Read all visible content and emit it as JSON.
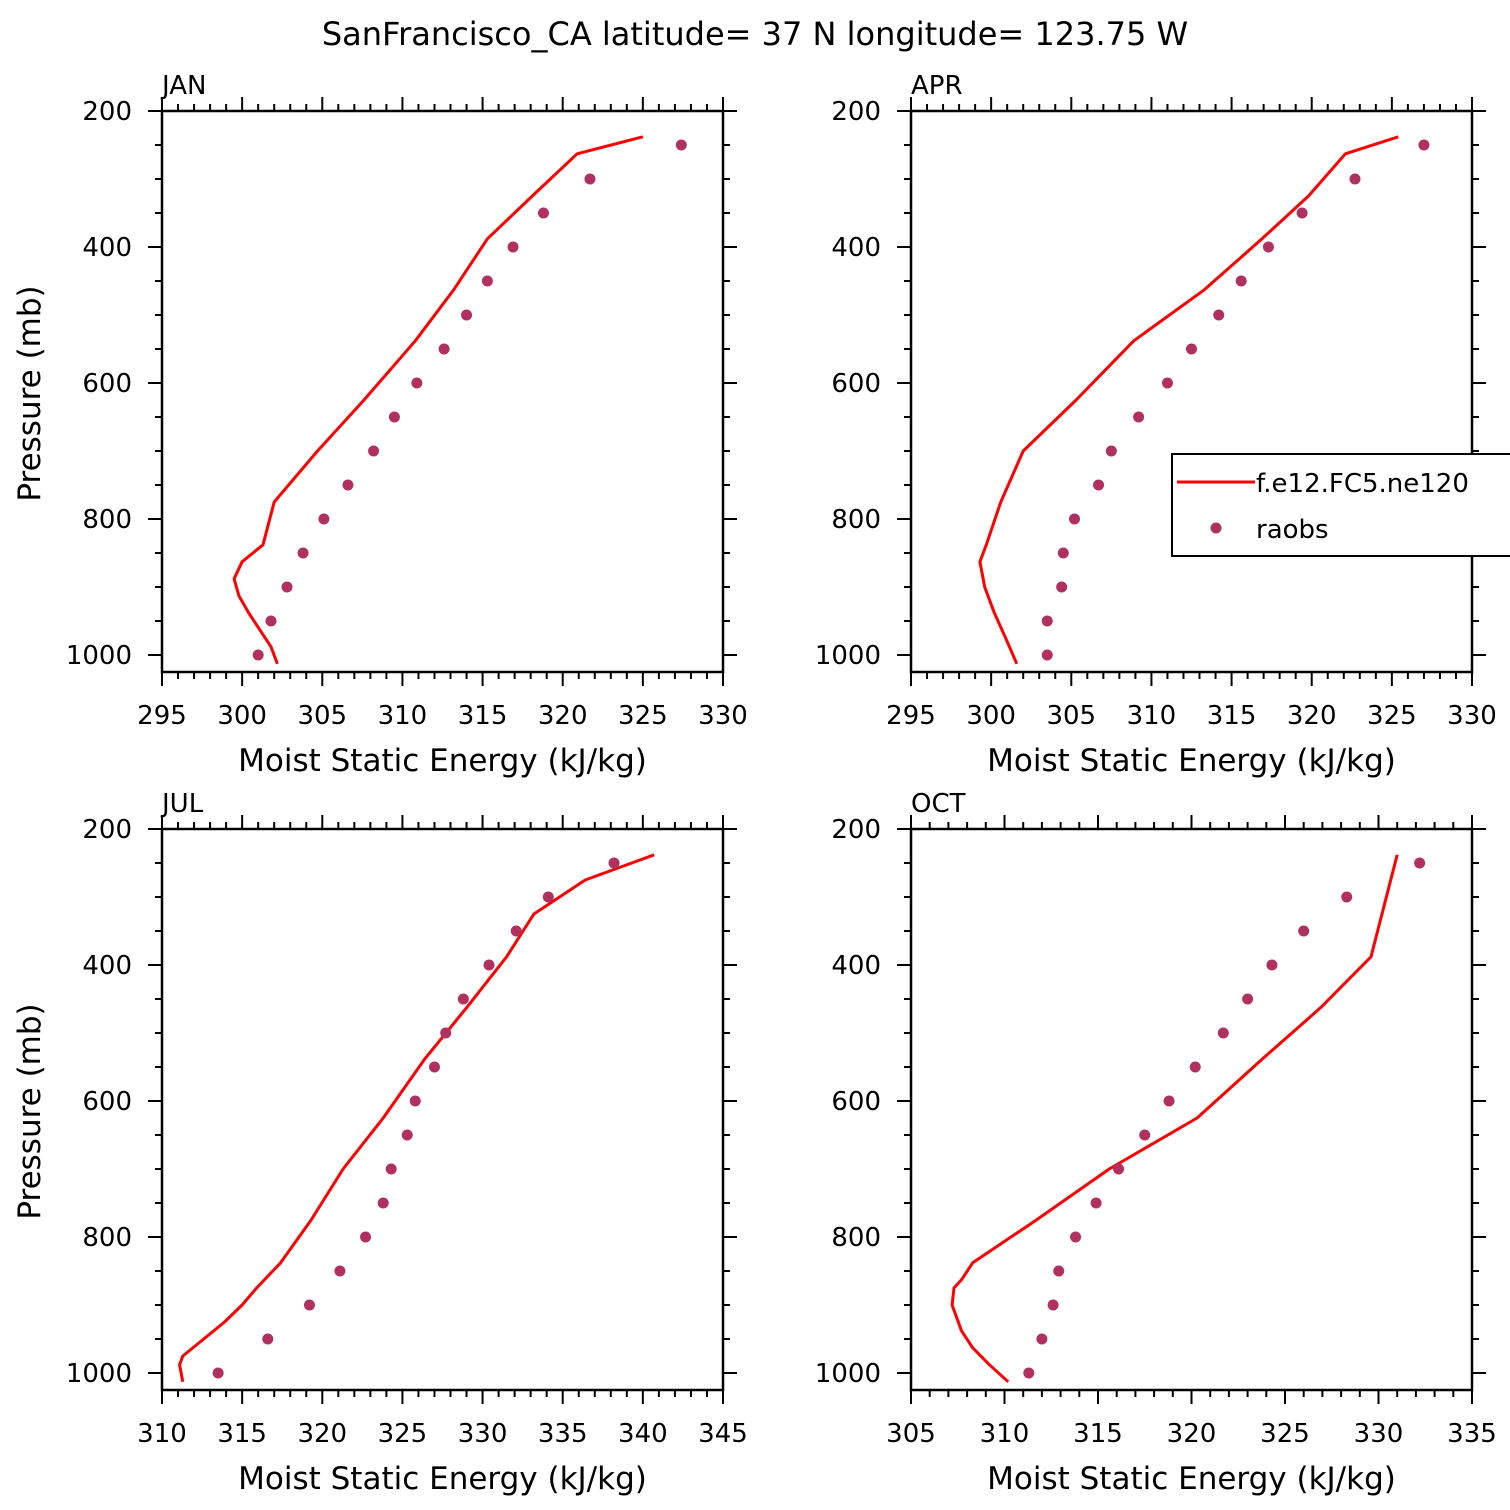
{
  "title": "SanFrancisco_CA  latitude= 37 N longitude= 123.75 W",
  "colors": {
    "model": "#ff0000",
    "obs": "#b03060",
    "axis": "#000000"
  },
  "legend": {
    "model_label": "f.e12.FC5.ne120",
    "obs_label": "raobs",
    "placement": "right edge of APR panel"
  },
  "chart_data": [
    {
      "type": "line+scatter",
      "panel": "JAN",
      "xlabel": "Moist Static Energy (kJ/kg)",
      "ylabel": "Pressure (mb)",
      "xlim": [
        295,
        330
      ],
      "xticks": [
        295,
        300,
        305,
        310,
        315,
        320,
        325,
        330
      ],
      "ylim": [
        1025,
        200
      ],
      "yticks": [
        200,
        400,
        600,
        800,
        1000
      ],
      "series": [
        {
          "name": "f.e12.FC5.ne120",
          "style": "line",
          "x": [
            302.2,
            301.8,
            301.1,
            300.4,
            299.8,
            299.5,
            300.0,
            301.3,
            302.0,
            304.7,
            307.6,
            310.8,
            313.2,
            315.3,
            318.1,
            320.9,
            325.0
          ],
          "y": [
            1013,
            988,
            963,
            938,
            913,
            888,
            863,
            838,
            775,
            700,
            625,
            538,
            463,
            388,
            325,
            263,
            238
          ]
        },
        {
          "name": "raobs",
          "style": "dot",
          "x": [
            301.0,
            301.8,
            302.8,
            303.8,
            305.1,
            306.6,
            308.2,
            309.5,
            310.9,
            312.6,
            314.0,
            315.3,
            316.9,
            318.8,
            321.7,
            327.4
          ],
          "y": [
            1000,
            950,
            900,
            850,
            800,
            750,
            700,
            650,
            600,
            550,
            500,
            450,
            400,
            350,
            300,
            250
          ]
        }
      ]
    },
    {
      "type": "line+scatter",
      "panel": "APR",
      "xlabel": "Moist Static Energy (kJ/kg)",
      "ylabel": "",
      "xlim": [
        295,
        330
      ],
      "xticks": [
        295,
        300,
        305,
        310,
        315,
        320,
        325,
        330
      ],
      "ylim": [
        1025,
        200
      ],
      "yticks": [
        200,
        400,
        600,
        800,
        1000
      ],
      "series": [
        {
          "name": "f.e12.FC5.ne120",
          "style": "line",
          "x": [
            301.6,
            300.9,
            300.2,
            299.6,
            299.3,
            299.7,
            300.6,
            302.0,
            305.3,
            308.9,
            313.3,
            316.9,
            319.8,
            322.1,
            325.4
          ],
          "y": [
            1013,
            975,
            938,
            900,
            863,
            838,
            775,
            700,
            625,
            538,
            463,
            388,
            325,
            263,
            238
          ]
        },
        {
          "name": "raobs",
          "style": "dot",
          "x": [
            303.5,
            303.5,
            304.4,
            304.5,
            305.2,
            306.7,
            307.5,
            309.2,
            311.0,
            312.5,
            314.2,
            315.6,
            317.3,
            319.4,
            322.7,
            327.0
          ],
          "y": [
            1000,
            950,
            900,
            850,
            800,
            750,
            700,
            650,
            600,
            550,
            500,
            450,
            400,
            350,
            300,
            250
          ]
        }
      ]
    },
    {
      "type": "line+scatter",
      "panel": "JUL",
      "xlabel": "Moist Static Energy (kJ/kg)",
      "ylabel": "Pressure (mb)",
      "xlim": [
        310,
        345
      ],
      "xticks": [
        310,
        315,
        320,
        325,
        330,
        335,
        340,
        345
      ],
      "ylim": [
        1025,
        200
      ],
      "yticks": [
        200,
        400,
        600,
        800,
        1000
      ],
      "series": [
        {
          "name": "f.e12.FC5.ne120",
          "style": "line",
          "x": [
            311.3,
            311.1,
            311.3,
            312.6,
            313.9,
            315.0,
            315.9,
            317.4,
            319.3,
            321.3,
            323.8,
            326.4,
            329.0,
            331.5,
            333.2,
            336.4,
            340.7
          ],
          "y": [
            1013,
            988,
            975,
            950,
            925,
            900,
            875,
            838,
            775,
            700,
            625,
            538,
            463,
            388,
            325,
            275,
            238
          ]
        },
        {
          "name": "raobs",
          "style": "dot",
          "x": [
            313.5,
            316.6,
            319.2,
            321.1,
            322.7,
            323.8,
            324.3,
            325.3,
            325.8,
            327.0,
            327.7,
            328.8,
            330.4,
            332.1,
            334.1,
            338.2
          ],
          "y": [
            1000,
            950,
            900,
            850,
            800,
            750,
            700,
            650,
            600,
            550,
            500,
            450,
            400,
            350,
            300,
            250
          ]
        }
      ]
    },
    {
      "type": "line+scatter",
      "panel": "OCT",
      "xlabel": "Moist Static Energy (kJ/kg)",
      "ylabel": "",
      "xlim": [
        305,
        335
      ],
      "xticks": [
        305,
        310,
        315,
        320,
        325,
        330,
        335
      ],
      "ylim": [
        1025,
        200
      ],
      "yticks": [
        200,
        400,
        600,
        800,
        1000
      ],
      "series": [
        {
          "name": "f.e12.FC5.ne120",
          "style": "line",
          "x": [
            310.2,
            309.2,
            308.3,
            307.7,
            307.2,
            307.3,
            307.7,
            308.3,
            311.7,
            315.6,
            320.3,
            323.8,
            326.9,
            329.6,
            331.0
          ],
          "y": [
            1013,
            988,
            963,
            938,
            900,
            875,
            863,
            838,
            775,
            700,
            625,
            538,
            463,
            388,
            238
          ]
        },
        {
          "name": "raobs",
          "style": "dot",
          "x": [
            311.3,
            312.0,
            312.6,
            312.9,
            313.8,
            314.9,
            316.1,
            317.5,
            318.8,
            320.2,
            321.7,
            323.0,
            324.3,
            326.0,
            328.3,
            332.2
          ],
          "y": [
            1000,
            950,
            900,
            850,
            800,
            750,
            700,
            650,
            600,
            550,
            500,
            450,
            400,
            350,
            300,
            250
          ]
        }
      ]
    }
  ]
}
